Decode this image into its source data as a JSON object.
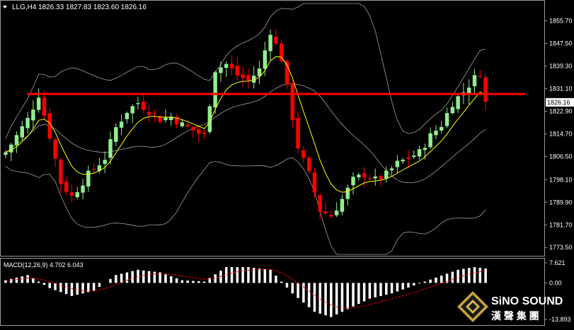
{
  "header": {
    "symbol": "LLG,H4",
    "ohlc": "1826.33 1827.83 1823.60 1826.16"
  },
  "price_axis": {
    "ticks": [
      "1855.70",
      "1847.50",
      "1839.30",
      "1831.10",
      "1822.90",
      "1814.70",
      "1806.50",
      "1798.10",
      "1789.90",
      "1781.70",
      "1773.50"
    ],
    "current_price": "1826.16"
  },
  "macd_panel": {
    "label": "MACD(12,26,9) 4.702 6.043",
    "ticks": [
      "7.621",
      "0.00",
      "-13.893"
    ]
  },
  "logo": {
    "name": "SiNO SOUND",
    "chinese": "漢 聲 集 團"
  },
  "colors": {
    "background": "#000000",
    "bull_candle": "#90EE90",
    "bear_candle": "#FF0000",
    "bollinger": "#A0A0A0",
    "moving_average": "#FFFF00",
    "resistance_line": "#FF0000",
    "macd_signal": "#FF0000",
    "macd_histogram": "#FFFFFF"
  },
  "chart_data": {
    "type": "candlestick",
    "timeframe": "H4",
    "y_range": [
      1771,
      1862
    ],
    "resistance_level": 1829.2,
    "price_path": [
      [
        0,
        1808
      ],
      [
        4,
        1820
      ],
      [
        6,
        1829
      ],
      [
        8,
        1814
      ],
      [
        10,
        1797
      ],
      [
        12,
        1792
      ],
      [
        15,
        1800
      ],
      [
        18,
        1806
      ],
      [
        20,
        1817
      ],
      [
        22,
        1823
      ],
      [
        24,
        1826
      ],
      [
        26,
        1823
      ],
      [
        28,
        1820
      ],
      [
        30,
        1821
      ],
      [
        32,
        1818
      ],
      [
        34,
        1816
      ],
      [
        36,
        1814
      ],
      [
        38,
        1838
      ],
      [
        40,
        1840
      ],
      [
        42,
        1836
      ],
      [
        44,
        1834
      ],
      [
        46,
        1838
      ],
      [
        48,
        1852
      ],
      [
        50,
        1842
      ],
      [
        53,
        1810
      ],
      [
        55,
        1800
      ],
      [
        57,
        1787
      ],
      [
        59,
        1785
      ],
      [
        61,
        1791
      ],
      [
        63,
        1798
      ],
      [
        65,
        1800
      ],
      [
        67,
        1798
      ],
      [
        69,
        1800
      ],
      [
        71,
        1804
      ],
      [
        73,
        1806
      ],
      [
        75,
        1808
      ],
      [
        77,
        1814
      ],
      [
        79,
        1818
      ],
      [
        81,
        1826
      ],
      [
        83,
        1830
      ],
      [
        85,
        1835
      ],
      [
        86,
        1837
      ],
      [
        87,
        1826
      ]
    ],
    "macd_range": [
      -13.893,
      7.621
    ],
    "macd_path": [
      [
        0,
        1
      ],
      [
        4,
        3
      ],
      [
        8,
        -2
      ],
      [
        12,
        -5
      ],
      [
        16,
        -3
      ],
      [
        20,
        3
      ],
      [
        24,
        5
      ],
      [
        28,
        4
      ],
      [
        32,
        1
      ],
      [
        36,
        0.5
      ],
      [
        40,
        6
      ],
      [
        44,
        6
      ],
      [
        48,
        5
      ],
      [
        52,
        -4
      ],
      [
        56,
        -11
      ],
      [
        59,
        -13
      ],
      [
        62,
        -10
      ],
      [
        66,
        -6
      ],
      [
        70,
        -4
      ],
      [
        74,
        -1
      ],
      [
        78,
        2
      ],
      [
        82,
        5
      ],
      [
        85,
        6
      ],
      [
        87,
        5.5
      ]
    ]
  }
}
